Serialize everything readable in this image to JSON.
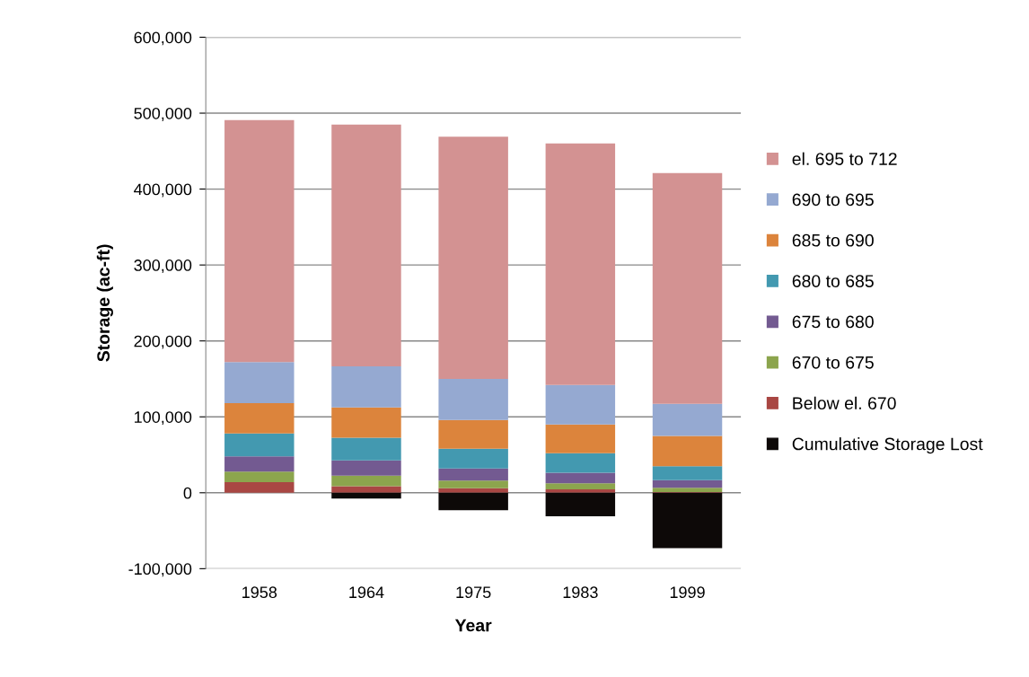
{
  "chart_data": {
    "type": "bar",
    "stacked": true,
    "xlabel": "Year",
    "ylabel": "Storage (ac-ft)",
    "categories": [
      "1958",
      "1964",
      "1975",
      "1983",
      "1999"
    ],
    "series": [
      {
        "name": "Below el. 670",
        "color": "#a94743",
        "values": [
          14000,
          8500,
          6000,
          4500,
          1000
        ]
      },
      {
        "name": "670 to 675",
        "color": "#8ca54d",
        "values": [
          14000,
          14000,
          10000,
          8000,
          5500
        ]
      },
      {
        "name": "675 to 680",
        "color": "#735a91",
        "values": [
          20000,
          20000,
          16000,
          14000,
          10000
        ]
      },
      {
        "name": "680 to 685",
        "color": "#4399b0",
        "values": [
          30000,
          30000,
          26000,
          25500,
          18500
        ]
      },
      {
        "name": "685 to 690",
        "color": "#dc843c",
        "values": [
          40000,
          40000,
          38000,
          38000,
          40000
        ]
      },
      {
        "name": "690 to 695",
        "color": "#95a9d1",
        "values": [
          54000,
          54000,
          54000,
          52000,
          42000
        ]
      },
      {
        "name": "el. 695 to 712",
        "color": "#d39292",
        "values": [
          319000,
          318500,
          319000,
          318000,
          304000
        ]
      },
      {
        "name": "Cumulative Storage Lost",
        "color": "#0d0908",
        "values": [
          0,
          -7500,
          -23000,
          -31000,
          -73000
        ]
      }
    ],
    "ylim": [
      -100000,
      600000
    ],
    "yticks": [
      {
        "value": -100000,
        "label": "-100,000"
      },
      0,
      {
        "value": 100000,
        "label": "100,000"
      },
      {
        "value": 200000,
        "label": "200,000"
      },
      {
        "value": 300000,
        "label": "300,000"
      },
      {
        "value": 400000,
        "label": "400,000"
      },
      {
        "value": 500000,
        "label": "500,000"
      },
      {
        "value": 600000,
        "label": "600,000"
      }
    ],
    "grid": "y",
    "legend": "right"
  }
}
